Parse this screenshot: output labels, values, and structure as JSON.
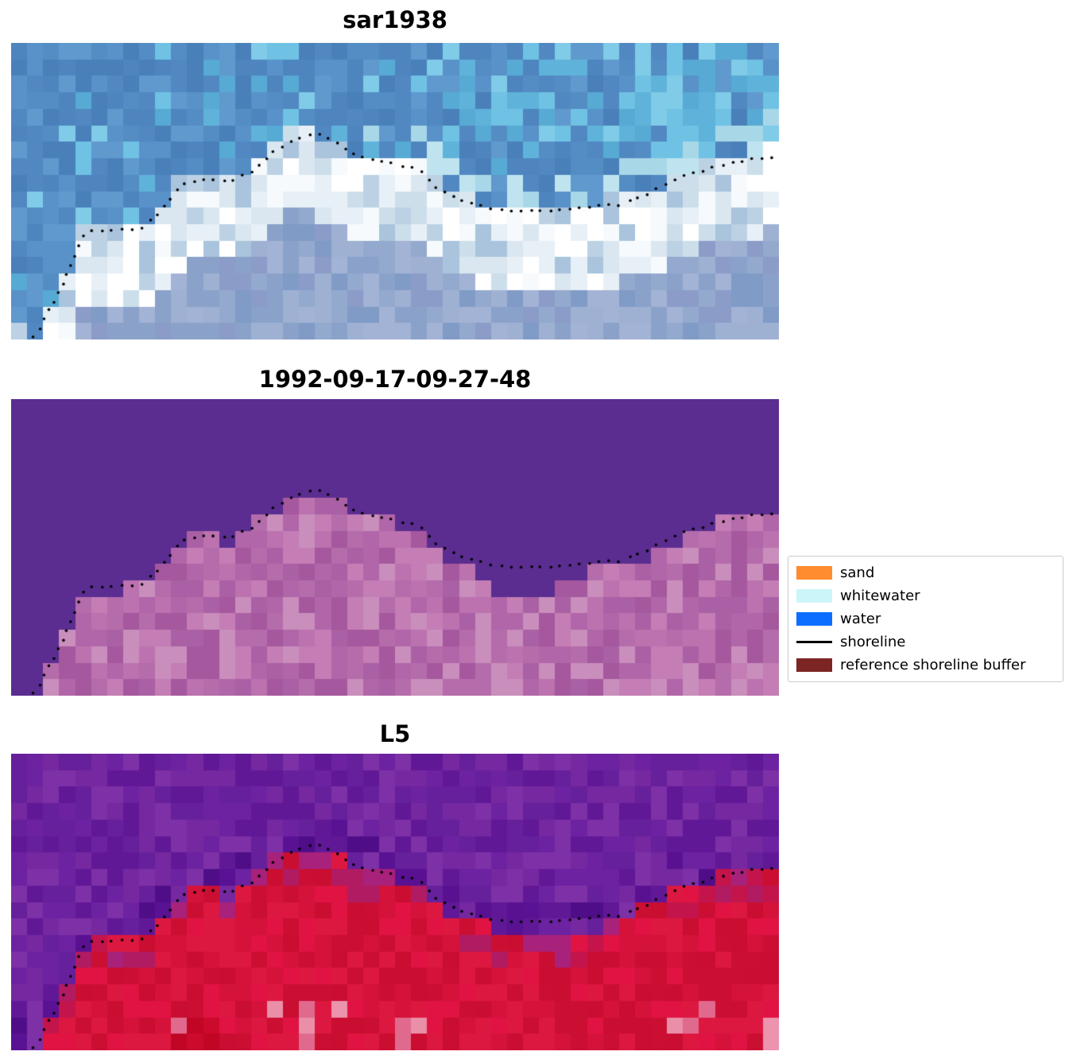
{
  "legend": {
    "items": [
      {
        "label": "sand",
        "type": "patch",
        "color": "#ff8c2e"
      },
      {
        "label": "whitewater",
        "type": "patch",
        "color": "#ccf5fa"
      },
      {
        "label": "water",
        "type": "patch",
        "color": "#0c6eff"
      },
      {
        "label": "shoreline",
        "type": "line",
        "color": "#000000"
      },
      {
        "label": "reference shoreline buffer",
        "type": "patch",
        "color": "#7d2424"
      }
    ]
  },
  "chart_data": {
    "type": "heatmap",
    "description": "Three co-registered coastal image panels with a mapped dotted shoreline overlay; legend at center right",
    "legend_position": "center right",
    "panels": [
      {
        "title": "sar1938",
        "kind": "sar",
        "palette": {
          "water": [
            "#4e85bf",
            "#5991c9",
            "#548cc4",
            "#4a80ba",
            "#6099cd",
            "#5288c2"
          ],
          "cyan": [
            "#5fb3da",
            "#6fc2e3",
            "#57aad3",
            "#7fcbe8"
          ],
          "fringe": [
            "#a8d8e8",
            "#bfe4ef"
          ],
          "surf": [
            "#e8f0f7",
            "#f6fafc",
            "#ffffff",
            "#dae7f0"
          ],
          "surf_alt": [
            "#bcd2e4",
            "#a9c4dc",
            "#cddeeb"
          ],
          "land": [
            "#8aa2c9",
            "#94a9ce",
            "#7f9bc6",
            "#9fb1d3",
            "#8b9cc8",
            "#a3b3d5"
          ]
        }
      },
      {
        "title": "1992-09-17-09-27-48",
        "kind": "class",
        "palette": {
          "above": "#5b2d91",
          "below": [
            "#b066a9",
            "#aa60a4",
            "#bb72af",
            "#c47eb5",
            "#a5589e",
            "#b56cab",
            "#c98ebc"
          ]
        }
      },
      {
        "title": "L5",
        "kind": "l5",
        "palette": {
          "above": [
            "#6d22a1",
            "#611897",
            "#75289f",
            "#66209b",
            "#7e30a6"
          ],
          "above_dark": [
            "#581293",
            "#4f0e88",
            "#5a1191"
          ],
          "trans": [
            "#b11b62",
            "#c4144c",
            "#a8217a"
          ],
          "red": [
            "#d5123a",
            "#cb0f33",
            "#dd1840",
            "#c90e31",
            "#e01343"
          ],
          "pink": [
            "#e57d9d",
            "#ea8fa8",
            "#e06a8e",
            "#ec93ad"
          ],
          "deep": [
            "#c00525",
            "#cb0a2c"
          ]
        }
      }
    ],
    "shoreline_norm": [
      [
        0.03,
        0.995
      ],
      [
        0.045,
        0.92
      ],
      [
        0.062,
        0.845
      ],
      [
        0.079,
        0.745
      ],
      [
        0.092,
        0.66
      ],
      [
        0.105,
        0.635
      ],
      [
        0.135,
        0.628
      ],
      [
        0.168,
        0.625
      ],
      [
        0.193,
        0.578
      ],
      [
        0.21,
        0.52
      ],
      [
        0.224,
        0.472
      ],
      [
        0.25,
        0.462
      ],
      [
        0.285,
        0.468
      ],
      [
        0.31,
        0.44
      ],
      [
        0.34,
        0.37
      ],
      [
        0.368,
        0.322
      ],
      [
        0.394,
        0.306
      ],
      [
        0.42,
        0.33
      ],
      [
        0.45,
        0.378
      ],
      [
        0.48,
        0.4
      ],
      [
        0.51,
        0.415
      ],
      [
        0.534,
        0.432
      ],
      [
        0.556,
        0.49
      ],
      [
        0.576,
        0.515
      ],
      [
        0.6,
        0.54
      ],
      [
        0.627,
        0.558
      ],
      [
        0.66,
        0.565
      ],
      [
        0.695,
        0.565
      ],
      [
        0.73,
        0.56
      ],
      [
        0.765,
        0.552
      ],
      [
        0.795,
        0.545
      ],
      [
        0.825,
        0.515
      ],
      [
        0.85,
        0.478
      ],
      [
        0.875,
        0.448
      ],
      [
        0.9,
        0.432
      ],
      [
        0.93,
        0.408
      ],
      [
        0.96,
        0.393
      ],
      [
        0.992,
        0.383
      ]
    ]
  }
}
